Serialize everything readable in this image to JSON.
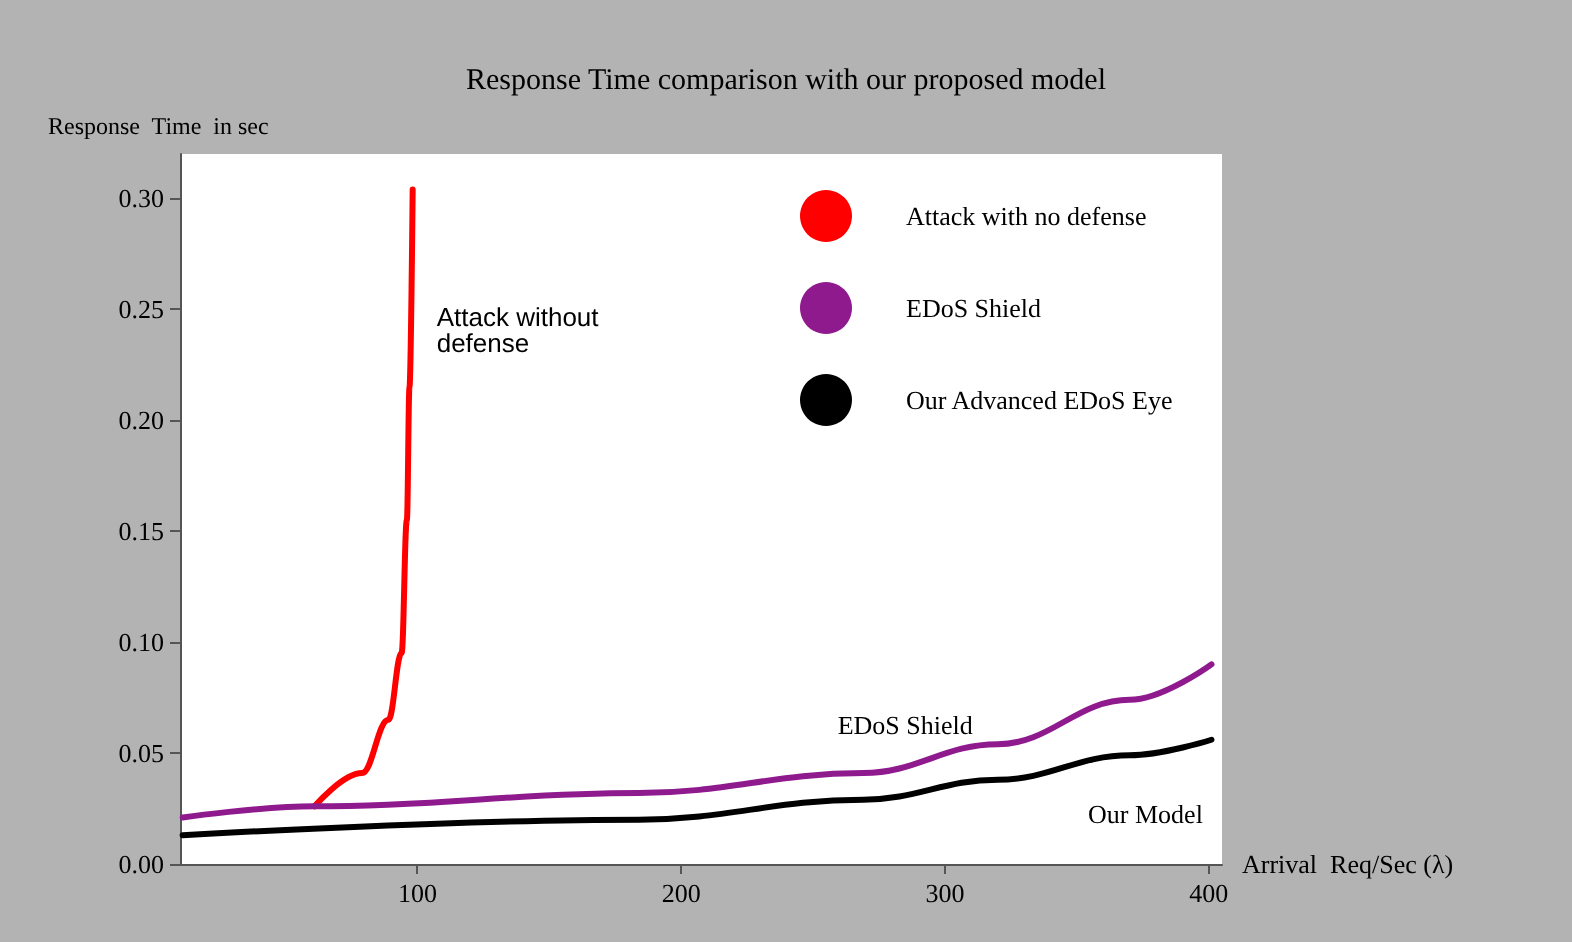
{
  "chart_data": {
    "type": "line",
    "title": "Response Time comparison with our proposed model",
    "xlabel": "Arrival  Req/Sec (λ)",
    "ylabel": "Response  Time  in sec",
    "series": [
      {
        "name": "Attack with no defense",
        "color": "#ff0000",
        "x": [
          61,
          79,
          89,
          94,
          96,
          97,
          98.2
        ],
        "values": [
          0.026,
          0.041,
          0.065,
          0.095,
          0.155,
          0.215,
          0.304
        ]
      },
      {
        "name": "EDoS Shield",
        "color": "#8e1a8e",
        "x": [
          11,
          61,
          184,
          269,
          320,
          370,
          401
        ],
        "values": [
          0.021,
          0.026,
          0.032,
          0.041,
          0.054,
          0.074,
          0.09
        ]
      },
      {
        "name": "Our Advanced EDoS Eye",
        "color": "#000000",
        "x": [
          11,
          184,
          269,
          320,
          370,
          401
        ],
        "values": [
          0.013,
          0.02,
          0.029,
          0.038,
          0.049,
          0.056
        ]
      }
    ],
    "annotations": [
      "Attack without defense",
      "EDoS Shield",
      "Our Model"
    ],
    "xlim": [
      10,
      405
    ],
    "xticks": [
      100,
      200,
      300,
      400
    ],
    "ylim": [
      0,
      0.32
    ],
    "yticks": [
      {
        "value": 0,
        "label": "0.00"
      },
      {
        "value": 0.05,
        "label": "0.05"
      },
      {
        "value": 0.1,
        "label": "0.10"
      },
      {
        "value": 0.15,
        "label": "0.15"
      },
      {
        "value": 0.2,
        "label": "0.20"
      },
      {
        "value": 0.25,
        "label": "0.25"
      },
      {
        "value": 0.3,
        "label": "0.30"
      }
    ],
    "legend": "top right",
    "grid": false,
    "marker": "none",
    "line_style": "solid"
  }
}
